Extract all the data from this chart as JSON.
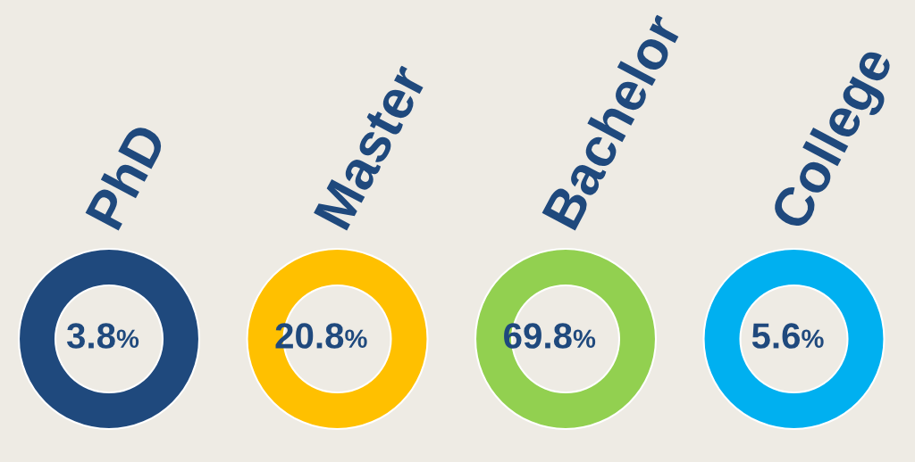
{
  "chart_data": {
    "type": "other",
    "categories": [
      "PhD",
      "Master",
      "Bachelor",
      "College"
    ],
    "values": [
      3.8,
      20.8,
      69.8,
      5.6
    ],
    "value_labels": [
      "3.8%",
      "20.8%",
      "69.8%",
      "5.6%"
    ],
    "colors": [
      "#1f497d",
      "#ffc000",
      "#92d050",
      "#00b0f0"
    ]
  }
}
